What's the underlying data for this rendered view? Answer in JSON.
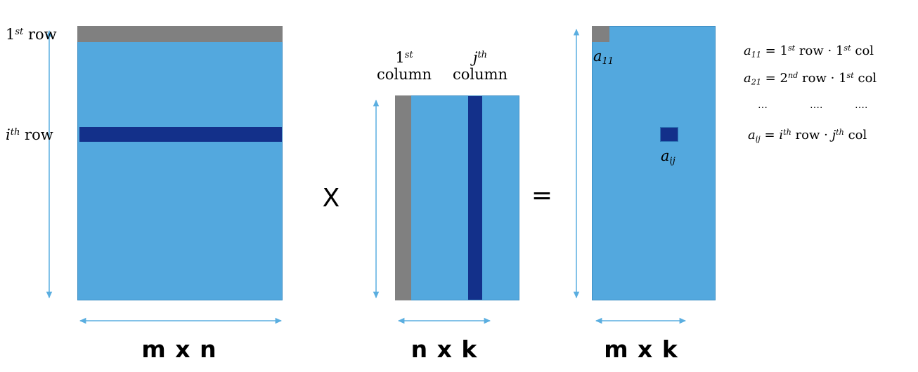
{
  "colors": {
    "matrix_fill": "#53a8de",
    "highlight_first": "#808080",
    "highlight_ith": "#13308a",
    "arrow": "#5aaee0"
  },
  "matrix_a": {
    "row1_base": "1",
    "row1_sup": "st",
    "row1_word": "row",
    "rowi_base": "i",
    "rowi_sup": "th",
    "rowi_word": "row",
    "dim": "m x n"
  },
  "operator_times": "X",
  "matrix_b": {
    "col1_base": "1",
    "col1_sup": "st",
    "col1_word": "column",
    "colj_base": "j",
    "colj_sup": "th",
    "colj_word": "column",
    "dim": "n x k"
  },
  "operator_equals": "=",
  "matrix_c": {
    "a11_base": "a",
    "a11_sub": "11",
    "aij_base": "a",
    "aij_sub": "ij",
    "dim": "m x k"
  },
  "equations": {
    "eq1": {
      "lhs_base": "a",
      "lhs_sub": "11",
      "equals": "=",
      "r_base": "1",
      "r_sup": "st",
      "r_word": "row",
      "dot": "·",
      "c_base": "1",
      "c_sup": "st",
      "c_word": "col"
    },
    "eq2": {
      "lhs_base": "a",
      "lhs_sub": "21",
      "equals": "=",
      "r_base": "2",
      "r_sup": "nd",
      "r_word": "row",
      "dot": "·",
      "c_base": "1",
      "c_sup": "st",
      "c_word": "col"
    },
    "dots": [
      "…",
      "….",
      "…."
    ],
    "eq3": {
      "lhs_base": "a",
      "lhs_sub": "ij",
      "equals": "=",
      "r_base": "i",
      "r_sup": "th",
      "r_word": "row",
      "dot": "·",
      "c_base": "j",
      "c_sup": "th",
      "c_word": "col"
    }
  }
}
